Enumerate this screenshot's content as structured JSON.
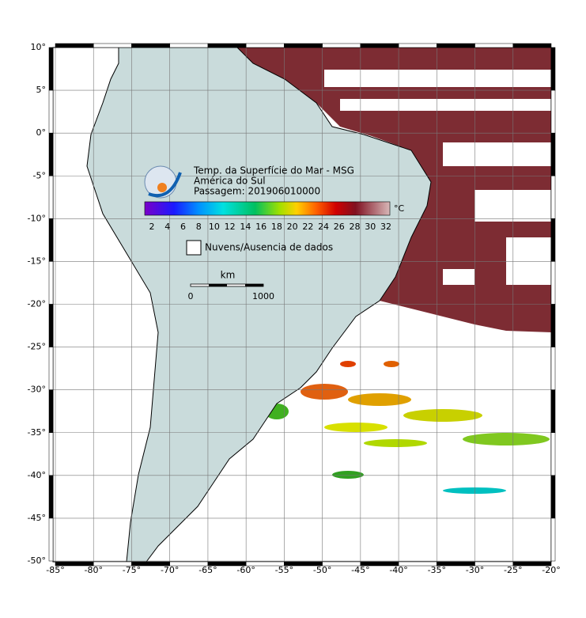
{
  "header": {
    "title": "Temp. da Superfície do Mar - MSG",
    "region": "América do Sul",
    "pass": "Passagem: 201906010000"
  },
  "colorbar": {
    "ticks": [
      "2",
      "4",
      "6",
      "8",
      "10",
      "12",
      "14",
      "16",
      "18",
      "20",
      "22",
      "24",
      "26",
      "28",
      "30",
      "32"
    ],
    "unit": "°C"
  },
  "legend": {
    "label": "Nuvens/Ausencia de dados"
  },
  "scale": {
    "unit": "km",
    "start": "0",
    "end": "1000"
  },
  "map": {
    "lon_labels": [
      "-85°",
      "-80°",
      "-75°",
      "-70°",
      "-65°",
      "-60°",
      "-55°",
      "-50°",
      "-45°",
      "-40°",
      "-35°",
      "-30°",
      "-25°",
      "-20°"
    ],
    "lat_labels": [
      "10°",
      "5°",
      "0°",
      "-5°",
      "-10°",
      "-15°",
      "-20°",
      "-25°",
      "-30°",
      "-35°",
      "-40°",
      "-45°",
      "-50°"
    ]
  }
}
